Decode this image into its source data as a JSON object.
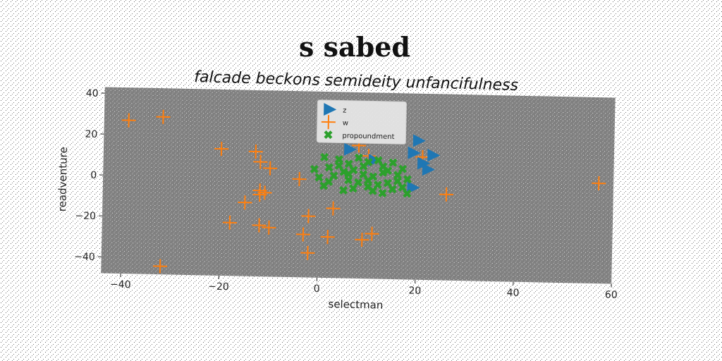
{
  "chart_data": {
    "type": "scatter",
    "title": "s sabed",
    "subtitle": "falcade beckons semideity unfancifulness",
    "xlabel": "selectman",
    "ylabel": "readventure",
    "xlim": [
      -44,
      60
    ],
    "ylim": [
      -48,
      43
    ],
    "xticks": [
      -40,
      -20,
      0,
      20,
      40,
      60
    ],
    "yticks": [
      -40,
      -20,
      0,
      20,
      40
    ],
    "xtick_labels": [
      "−40",
      "−20",
      "0",
      "20",
      "40",
      "60"
    ],
    "ytick_labels": [
      "−40",
      "−20",
      "0",
      "20",
      "40"
    ],
    "background": "#808080",
    "legend_position": "top-center",
    "series": [
      {
        "name": "z",
        "marker": "triangle-right",
        "color": "#1f77b4",
        "points": [
          [
            20,
            20
          ],
          [
            6,
            15
          ],
          [
            19,
            14
          ],
          [
            23,
            13
          ],
          [
            21,
            9
          ],
          [
            22,
            6
          ],
          [
            11,
            10
          ],
          [
            19,
            -3
          ]
        ]
      },
      {
        "name": "w",
        "marker": "plus",
        "color": "#ff7f0e",
        "points": [
          [
            -39,
            27
          ],
          [
            -32,
            29
          ],
          [
            -20,
            14
          ],
          [
            -13,
            13
          ],
          [
            -12,
            8
          ],
          [
            -10,
            5
          ],
          [
            -4,
            0
          ],
          [
            -12,
            -6
          ],
          [
            -12,
            -8
          ],
          [
            -15,
            -12
          ],
          [
            -11,
            -7
          ],
          [
            -18,
            -22
          ],
          [
            -12,
            -23
          ],
          [
            -10,
            -24
          ],
          [
            -2,
            -18
          ],
          [
            3,
            -14
          ],
          [
            -3,
            -27
          ],
          [
            2,
            -28
          ],
          [
            -2,
            -36
          ],
          [
            9,
            -29
          ],
          [
            11,
            -26
          ],
          [
            8,
            17
          ],
          [
            10,
            12
          ],
          [
            21,
            12
          ],
          [
            26,
            -6
          ],
          [
            57,
            1
          ],
          [
            -32,
            -44
          ]
        ]
      },
      {
        "name": "propoundment",
        "marker": "x-filled",
        "color": "#2ca02c",
        "points": [
          [
            1,
            11
          ],
          [
            4,
            10
          ],
          [
            6,
            8
          ],
          [
            8,
            11
          ],
          [
            10,
            9
          ],
          [
            13,
            7
          ],
          [
            15,
            9
          ],
          [
            17,
            6
          ],
          [
            -1,
            5
          ],
          [
            2,
            6
          ],
          [
            5,
            4
          ],
          [
            7,
            5
          ],
          [
            9,
            3
          ],
          [
            11,
            2
          ],
          [
            13,
            4
          ],
          [
            16,
            3
          ],
          [
            18,
            1
          ],
          [
            0,
            1
          ],
          [
            3,
            2
          ],
          [
            6,
            0
          ],
          [
            8,
            -1
          ],
          [
            10,
            0
          ],
          [
            12,
            -2
          ],
          [
            14,
            -1
          ],
          [
            17,
            -3
          ],
          [
            1,
            -3
          ],
          [
            5,
            -5
          ],
          [
            7,
            -4
          ],
          [
            11,
            -5
          ],
          [
            13,
            -6
          ],
          [
            15,
            -4
          ],
          [
            18,
            -6
          ],
          [
            4,
            7
          ],
          [
            9,
            7
          ],
          [
            12,
            10
          ],
          [
            16,
            0
          ],
          [
            2,
            -1
          ],
          [
            14,
            5
          ],
          [
            6,
            3
          ],
          [
            10,
            -3
          ]
        ]
      }
    ]
  }
}
